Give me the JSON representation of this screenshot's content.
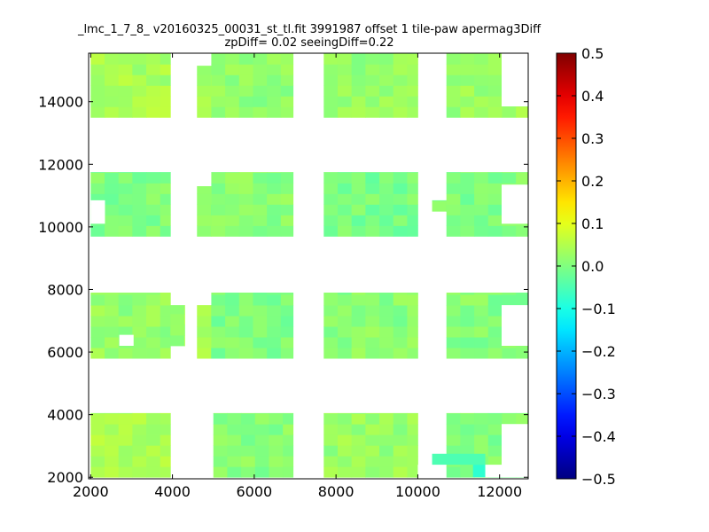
{
  "chart_data": {
    "type": "heatmap",
    "title": [
      "_lmc_1_7_8_ v20160325_00031_st_tl.fit 3991987 offset 1 tile-paw apermag3Diff",
      "zpDiff= 0.02 seeingDiff=0.22"
    ],
    "xlabel": "",
    "ylabel": "",
    "xlim": [
      1950,
      12700
    ],
    "ylim": [
      1950,
      15550
    ],
    "x_ticks": [
      2000,
      4000,
      6000,
      8000,
      10000,
      12000
    ],
    "y_ticks": [
      2000,
      4000,
      6000,
      8000,
      10000,
      12000,
      14000
    ],
    "colorbar": {
      "colormap": "jet",
      "vmin": -0.5,
      "vmax": 0.5,
      "ticks": [
        "0.5",
        "0.4",
        "0.3",
        "0.2",
        "0.1",
        "0.0",
        "−0.1",
        "−0.2",
        "−0.3",
        "−0.4",
        "−0.5"
      ]
    },
    "grid": false,
    "cell_size": 340,
    "cells": [
      {
        "x": [
          2000,
          3950
        ],
        "y": [
          2000,
          4050
        ],
        "value": 0.04
      },
      {
        "x": [
          5000,
          6950
        ],
        "y": [
          2000,
          4050
        ],
        "value": 0.01
      },
      {
        "x": [
          7700,
          10000
        ],
        "y": [
          2000,
          4050
        ],
        "value": 0.025
      },
      {
        "x": [
          10700,
          12700
        ],
        "y": [
          2000,
          4050
        ],
        "value": 0.005
      },
      {
        "x": [
          2000,
          3950
        ],
        "y": [
          5800,
          7900
        ],
        "value": 0.02
      },
      {
        "x": [
          3950,
          4300
        ],
        "y": [
          6200,
          7500
        ],
        "value": 0.03
      },
      {
        "x": [
          4600,
          4950
        ],
        "y": [
          5800,
          7500
        ],
        "value": 0.03
      },
      {
        "x": [
          4950,
          6950
        ],
        "y": [
          5800,
          7900
        ],
        "value": 0.0
      },
      {
        "x": [
          7700,
          10000
        ],
        "y": [
          5800,
          7900
        ],
        "value": 0.01
      },
      {
        "x": [
          10700,
          12700
        ],
        "y": [
          5800,
          7900
        ],
        "value": 0.005
      },
      {
        "x": [
          2000,
          3950
        ],
        "y": [
          9700,
          11750
        ],
        "value": 0.0
      },
      {
        "x": [
          4600,
          4950
        ],
        "y": [
          9700,
          11300
        ],
        "value": 0.02
      },
      {
        "x": [
          4950,
          6950
        ],
        "y": [
          9700,
          11750
        ],
        "value": 0.01
      },
      {
        "x": [
          7700,
          10000
        ],
        "y": [
          9700,
          11750
        ],
        "value": -0.005
      },
      {
        "x": [
          10350,
          10700
        ],
        "y": [
          10500,
          10850
        ],
        "value": 0.0
      },
      {
        "x": [
          10700,
          12700
        ],
        "y": [
          9700,
          11750
        ],
        "value": 0.0
      },
      {
        "x": [
          2000,
          3950
        ],
        "y": [
          13500,
          15550
        ],
        "value": 0.04
      },
      {
        "x": [
          4600,
          4950
        ],
        "y": [
          13500,
          15150
        ],
        "value": 0.03
      },
      {
        "x": [
          4950,
          6950
        ],
        "y": [
          13500,
          15550
        ],
        "value": 0.015
      },
      {
        "x": [
          7700,
          10000
        ],
        "y": [
          13500,
          15550
        ],
        "value": 0.02
      },
      {
        "x": [
          10700,
          12700
        ],
        "y": [
          13500,
          15550
        ],
        "value": 0.03
      }
    ],
    "special_cells": [
      {
        "x": [
          10350,
          11650
        ],
        "y": [
          2400,
          2750
        ],
        "value": -0.05
      },
      {
        "x": [
          11350,
          11650
        ],
        "y": [
          2000,
          2400
        ],
        "value": -0.08
      }
    ],
    "gaps": [
      {
        "x": [
          2000,
          2350
        ],
        "y": [
          10100,
          10850
        ]
      },
      {
        "x": [
          2700,
          3050
        ],
        "y": [
          6200,
          6550
        ]
      },
      {
        "x": [
          12050,
          12700
        ],
        "y": [
          2000,
          3700
        ]
      },
      {
        "x": [
          12050,
          12700
        ],
        "y": [
          6200,
          7500
        ]
      },
      {
        "x": [
          12050,
          12700
        ],
        "y": [
          10100,
          11350
        ]
      },
      {
        "x": [
          12050,
          12700
        ],
        "y": [
          13850,
          15550
        ]
      },
      {
        "x": [
          11650,
          12050
        ],
        "y": [
          2000,
          2400
        ]
      },
      {
        "x": [
          10000,
          10350
        ],
        "y": [
          2000,
          2400
        ]
      }
    ]
  }
}
